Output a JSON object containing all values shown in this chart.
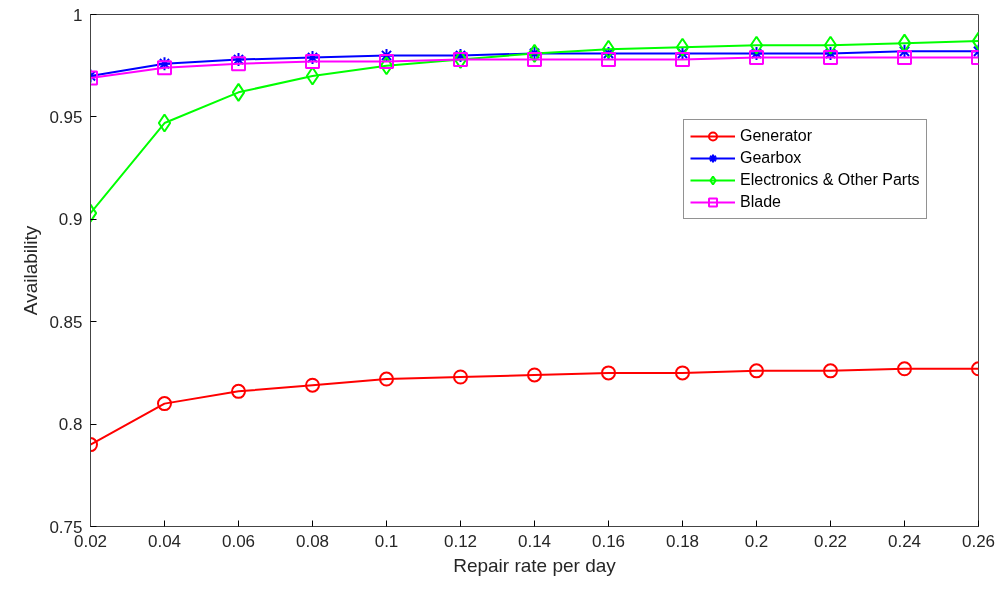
{
  "chart_data": {
    "type": "line",
    "xlabel": "Repair rate per day",
    "ylabel": "Availability",
    "x": [
      0.02,
      0.04,
      0.06,
      0.08,
      0.1,
      0.12,
      0.14,
      0.16,
      0.18,
      0.2,
      0.22,
      0.24,
      0.26
    ],
    "series": [
      {
        "name": "Generator",
        "color": "#ff0000",
        "marker": "circle",
        "values": [
          0.79,
          0.81,
          0.816,
          0.819,
          0.822,
          0.823,
          0.824,
          0.825,
          0.825,
          0.826,
          0.826,
          0.827,
          0.827
        ]
      },
      {
        "name": "Gearbox",
        "color": "#0000ff",
        "marker": "cross",
        "values": [
          0.97,
          0.976,
          0.978,
          0.979,
          0.98,
          0.98,
          0.981,
          0.981,
          0.981,
          0.981,
          0.981,
          0.982,
          0.982
        ]
      },
      {
        "name": "Electronics & Other Parts",
        "color": "#00ff00",
        "marker": "diamond",
        "values": [
          0.903,
          0.947,
          0.962,
          0.97,
          0.975,
          0.978,
          0.981,
          0.983,
          0.984,
          0.985,
          0.985,
          0.986,
          0.987
        ]
      },
      {
        "name": "Blade",
        "color": "#ff00ff",
        "marker": "square",
        "values": [
          0.969,
          0.974,
          0.976,
          0.977,
          0.977,
          0.978,
          0.978,
          0.978,
          0.978,
          0.979,
          0.979,
          0.979,
          0.979
        ]
      }
    ],
    "xlim": [
      0.02,
      0.26
    ],
    "ylim": [
      0.75,
      1
    ],
    "xticks": [
      0.02,
      0.04,
      0.06,
      0.08,
      0.1,
      0.12,
      0.14,
      0.16,
      0.18,
      0.2,
      0.22,
      0.24,
      0.26
    ],
    "yticks": [
      0.75,
      0.8,
      0.85,
      0.9,
      0.95,
      1
    ],
    "grid": false,
    "legend": "top right",
    "line_style": "solid"
  }
}
